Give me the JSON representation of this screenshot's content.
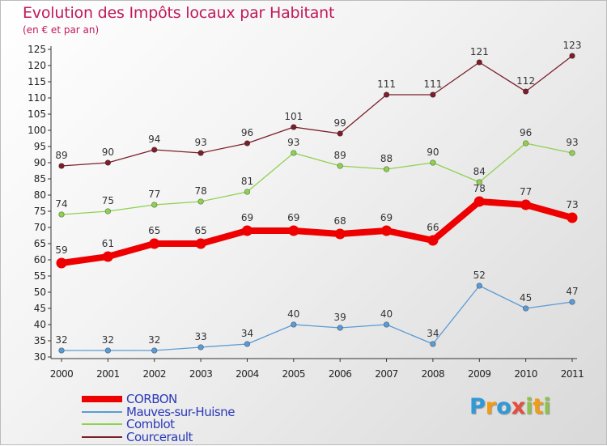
{
  "title": "Evolution des Impôts locaux par Habitant",
  "subtitle": "(en € et par an)",
  "logo": {
    "text": "Proxiti",
    "letter_colors": [
      "#2e9ad8",
      "#f39c12",
      "#2e9ad8",
      "#e74c3c",
      "#8bc34a",
      "#f39c12",
      "#8bc34a"
    ]
  },
  "colors": {
    "title": "#c2185b",
    "legend_text": "#2a39b8",
    "axis": "#333333"
  },
  "chart_data": {
    "type": "line",
    "title": "Evolution des Impôts locaux par Habitant",
    "subtitle": "(en € et par an)",
    "xlabel": "",
    "ylabel": "",
    "ylim": [
      30,
      125
    ],
    "ytick_step": 5,
    "grid": false,
    "legend_position": "bottom-left",
    "categories": [
      "2000",
      "2001",
      "2002",
      "2003",
      "2004",
      "2005",
      "2006",
      "2007",
      "2008",
      "2009",
      "2010",
      "2011"
    ],
    "series": [
      {
        "name": "CORBON",
        "color": "#ee0000",
        "bold": true,
        "values": [
          59,
          61,
          65,
          65,
          69,
          69,
          68,
          69,
          66,
          78,
          77,
          73
        ]
      },
      {
        "name": "Mauves-sur-Huisne",
        "color": "#5b9bd5",
        "bold": false,
        "values": [
          32,
          32,
          32,
          33,
          34,
          40,
          39,
          40,
          34,
          52,
          45,
          47
        ]
      },
      {
        "name": "Comblot",
        "color": "#8fd14f",
        "bold": false,
        "values": [
          74,
          75,
          77,
          78,
          81,
          93,
          89,
          88,
          90,
          84,
          96,
          93
        ]
      },
      {
        "name": "Courcerault",
        "color": "#7b1f2a",
        "bold": false,
        "values": [
          89,
          90,
          94,
          93,
          96,
          101,
          99,
          111,
          111,
          121,
          112,
          123
        ]
      }
    ]
  }
}
